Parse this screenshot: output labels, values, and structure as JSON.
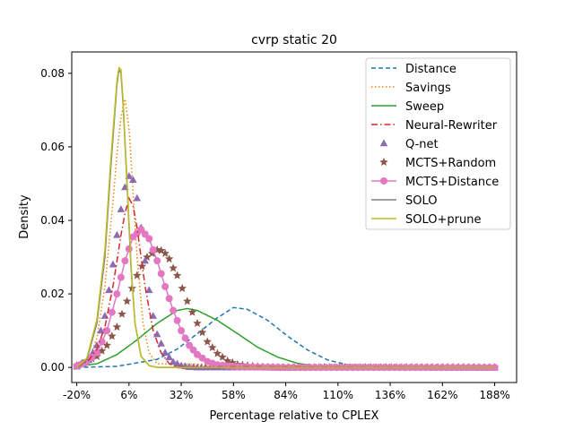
{
  "chart_data": {
    "type": "line",
    "title": "cvrp static 20",
    "xlabel": "Percentage relative to CPLEX",
    "ylabel": "Density",
    "xlim": [
      -22.5,
      198.9
    ],
    "ylim": [
      -0.0041,
      0.0858
    ],
    "x_ticks": [
      -20,
      6,
      32,
      58,
      84,
      110,
      136,
      162,
      188
    ],
    "x_tick_labels": [
      "-20%",
      "6%",
      "32%",
      "58%",
      "84%",
      "110%",
      "136%",
      "162%",
      "188%"
    ],
    "y_ticks": [
      0,
      0.02,
      0.04,
      0.06,
      0.08
    ],
    "y_tick_labels": [
      "0.00",
      "0.02",
      "0.04",
      "0.06",
      "0.08"
    ],
    "grid": false,
    "legend_position": "top-right",
    "series": [
      {
        "name": "Distance",
        "style": "dashed",
        "color": "#1f77b4",
        "marker": "none",
        "x": [
          -20,
          0,
          20,
          30,
          40,
          50,
          58,
          65,
          75,
          85,
          95,
          105,
          115,
          125,
          140,
          188
        ],
        "y": [
          0,
          0.0003,
          0.0022,
          0.005,
          0.0092,
          0.0135,
          0.0163,
          0.0158,
          0.0128,
          0.0085,
          0.0047,
          0.002,
          0.0007,
          0.0002,
          0,
          0
        ]
      },
      {
        "name": "Savings",
        "style": "dotted",
        "color": "#ff7f0e",
        "marker": "none",
        "x": [
          -20,
          -14,
          -10,
          -6,
          -2,
          0,
          2,
          4,
          6,
          8,
          10,
          13,
          16,
          20,
          188
        ],
        "y": [
          0,
          0.002,
          0.008,
          0.022,
          0.045,
          0.058,
          0.068,
          0.073,
          0.065,
          0.048,
          0.03,
          0.012,
          0.004,
          0.001,
          0
        ]
      },
      {
        "name": "Sweep",
        "style": "solid",
        "color": "#2ca02c",
        "marker": "none",
        "x": [
          -20,
          -10,
          0,
          10,
          20,
          30,
          35,
          40,
          50,
          60,
          70,
          80,
          90,
          100,
          188
        ],
        "y": [
          0.0003,
          0.001,
          0.0035,
          0.0075,
          0.012,
          0.0155,
          0.016,
          0.0155,
          0.0128,
          0.0092,
          0.0055,
          0.0028,
          0.0011,
          0.0003,
          0
        ]
      },
      {
        "name": "Neural-Rewriter",
        "style": "dashdot",
        "color": "#d62728",
        "marker": "none",
        "x": [
          -20,
          -14,
          -10,
          -6,
          -2,
          2,
          4,
          6,
          8,
          10,
          14,
          18,
          22,
          26,
          30,
          188
        ],
        "y": [
          0,
          0.002,
          0.005,
          0.011,
          0.022,
          0.036,
          0.042,
          0.046,
          0.044,
          0.038,
          0.022,
          0.01,
          0.004,
          0.001,
          0.0002,
          0
        ]
      },
      {
        "name": "Q-net",
        "style": "none",
        "color": "#8c6bb1",
        "marker": "triangle",
        "x": [
          -20,
          -14,
          -10,
          -6,
          -2,
          0,
          2,
          4,
          6,
          8,
          10,
          12,
          14,
          16,
          18,
          20,
          24,
          28,
          32,
          36,
          40,
          44
        ],
        "y": [
          0.0002,
          0.002,
          0.006,
          0.014,
          0.028,
          0.036,
          0.043,
          0.049,
          0.052,
          0.051,
          0.046,
          0.038,
          0.029,
          0.021,
          0.014,
          0.009,
          0.004,
          0.0015,
          0.0005,
          0.0001,
          0,
          0
        ]
      },
      {
        "name": "MCTS+Random",
        "style": "none",
        "color": "#8c564b",
        "marker": "star",
        "x": [
          -20,
          -10,
          -5,
          0,
          5,
          10,
          15,
          20,
          22,
          24,
          26,
          28,
          30,
          35,
          40,
          45,
          50,
          55,
          60,
          70,
          80
        ],
        "y": [
          0.0005,
          0.003,
          0.006,
          0.011,
          0.018,
          0.025,
          0.03,
          0.032,
          0.0318,
          0.031,
          0.0295,
          0.027,
          0.025,
          0.018,
          0.012,
          0.007,
          0.0038,
          0.0018,
          0.0008,
          0.0002,
          0
        ]
      },
      {
        "name": "MCTS+Distance",
        "style": "solid",
        "color": "#e377c2",
        "marker": "circle",
        "x": [
          -20,
          -15,
          -10,
          -5,
          0,
          4,
          8,
          12,
          16,
          20,
          24,
          28,
          32,
          36,
          40,
          45,
          50,
          60,
          80,
          120,
          188
        ],
        "y": [
          0.0004,
          0.0015,
          0.004,
          0.01,
          0.02,
          0.029,
          0.0355,
          0.0375,
          0.035,
          0.029,
          0.022,
          0.0155,
          0.01,
          0.006,
          0.0035,
          0.0016,
          0.0007,
          0.0002,
          0,
          0,
          0
        ]
      },
      {
        "name": "SOLO",
        "style": "solid",
        "color": "#7f7f7f",
        "marker": "none",
        "x": [
          -20,
          -15,
          -10,
          -6,
          -3,
          0,
          1,
          2,
          3,
          5,
          7,
          9,
          12,
          16,
          20,
          188
        ],
        "y": [
          0,
          0.002,
          0.012,
          0.03,
          0.055,
          0.077,
          0.081,
          0.08,
          0.072,
          0.05,
          0.027,
          0.012,
          0.003,
          0.0005,
          0,
          0
        ]
      },
      {
        "name": "SOLO+prune",
        "style": "solid",
        "color": "#bcbd22",
        "marker": "none",
        "x": [
          -20,
          -15,
          -10,
          -6,
          -3,
          0,
          1,
          2,
          3,
          5,
          7,
          9,
          12,
          16,
          20,
          188
        ],
        "y": [
          0,
          0.0025,
          0.013,
          0.032,
          0.057,
          0.078,
          0.0815,
          0.081,
          0.073,
          0.051,
          0.028,
          0.012,
          0.003,
          0.0005,
          0,
          0
        ]
      }
    ]
  }
}
